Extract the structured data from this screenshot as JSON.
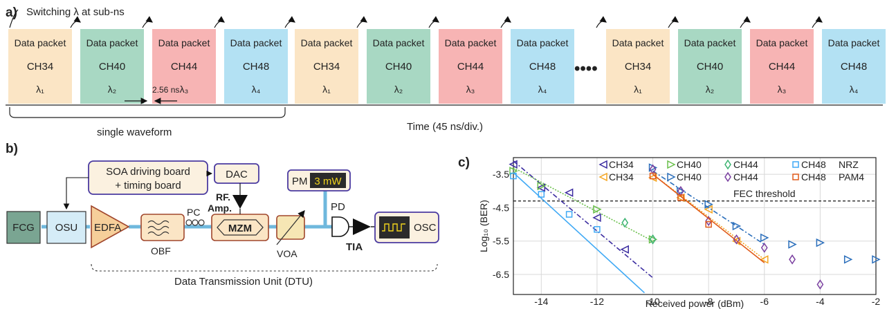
{
  "panel_a": {
    "label": "a)",
    "switching_note": "Switching λ  at sub-ns",
    "dots": "••••",
    "gap_label": "2.56 ns",
    "single_waveform": "single waveform",
    "time_label": "Time (45 ns/div.)",
    "packet_title": "Data packet",
    "packets": [
      {
        "ch": "CH34",
        "lam": "λ₁",
        "color": "#fbe5c5"
      },
      {
        "ch": "CH40",
        "lam": "λ₂",
        "color": "#a8d8c3"
      },
      {
        "ch": "CH44",
        "lam": "λ₃",
        "color": "#f7b4b4"
      },
      {
        "ch": "CH48",
        "lam": "λ₄",
        "color": "#b3e1f3"
      },
      {
        "ch": "CH34",
        "lam": "λ₁",
        "color": "#fbe5c5"
      },
      {
        "ch": "CH40",
        "lam": "λ₂",
        "color": "#a8d8c3"
      },
      {
        "ch": "CH44",
        "lam": "λ₃",
        "color": "#f7b4b4"
      },
      {
        "ch": "CH48",
        "lam": "λ₄",
        "color": "#b3e1f3"
      },
      {
        "ch": "CH34",
        "lam": "λ₁",
        "color": "#fbe5c5"
      },
      {
        "ch": "CH40",
        "lam": "λ₂",
        "color": "#a8d8c3"
      },
      {
        "ch": "CH44",
        "lam": "λ₃",
        "color": "#f7b4b4"
      },
      {
        "ch": "CH48",
        "lam": "λ₄",
        "color": "#b3e1f3"
      }
    ]
  },
  "panel_b": {
    "label": "b)",
    "soa_board_line1": "SOA driving board",
    "soa_board_line2": "+ timing board",
    "dac": "DAC",
    "pm": "PM",
    "pm_value": "3 mW",
    "rf_line1": "RF.",
    "rf_line2": "Amp.",
    "pd": "PD",
    "fcg": "FCG",
    "osu": "OSU",
    "edfa": "EDFA",
    "obf": "OBF",
    "pc": "PC",
    "mzm": "MZM",
    "voa": "VOA",
    "tia": "TIA",
    "osc": "OSC",
    "dtu": "Data Transmission Unit (DTU)"
  },
  "panel_c": {
    "label": "c)",
    "fec_label": "FEC threshold",
    "nrz_label": "NRZ",
    "pam4_label": "PAM4"
  },
  "chart_data": {
    "type": "scatter",
    "xlabel": "Received power (dBm)",
    "ylabel": "Log₁₀ (BER)",
    "xlim": [
      -15,
      -2
    ],
    "ylim": [
      -7.1,
      -3.0
    ],
    "xticks": [
      "-14",
      "-12",
      "-10",
      "-8",
      "-6",
      "-4",
      "-2"
    ],
    "yticks": [
      "-3.5",
      "-4.5",
      "-5.5",
      "-6.5"
    ],
    "fec_threshold": -4.3,
    "grid": true,
    "series": [
      {
        "name": "CH34",
        "format": "NRZ",
        "color": "#3b2ca0",
        "marker": "tri-left",
        "line": "dashdot",
        "x": [
          -15,
          -14,
          -13,
          -12,
          -11
        ],
        "y": [
          -3.2,
          -3.9,
          -4.05,
          -4.8,
          -5.75
        ],
        "fit": [
          [
            -15,
            -3.1
          ],
          [
            -10,
            -6.6
          ]
        ]
      },
      {
        "name": "CH40",
        "format": "NRZ",
        "color": "#6abf4b",
        "marker": "tri-right",
        "line": "dotted",
        "x": [
          -15,
          -14,
          -12,
          -10
        ],
        "y": [
          -3.4,
          -3.85,
          -4.55,
          -5.45
        ],
        "fit": [
          [
            -15,
            -3.3
          ],
          [
            -10,
            -5.5
          ]
        ]
      },
      {
        "name": "CH44",
        "format": "NRZ",
        "color": "#3cb371",
        "marker": "diamond",
        "line": "dashed",
        "x": [
          -11,
          -10
        ],
        "y": [
          -4.95,
          -5.45
        ],
        "fit": null
      },
      {
        "name": "CH48",
        "format": "NRZ",
        "color": "#3fa9f5",
        "marker": "square",
        "line": "solid",
        "x": [
          -15,
          -14,
          -13,
          -12
        ],
        "y": [
          -3.55,
          -4.1,
          -4.7,
          -5.15
        ],
        "fit": [
          [
            -15,
            -3.45
          ],
          [
            -10.3,
            -7.05
          ]
        ]
      },
      {
        "name": "CH34",
        "format": "PAM4",
        "color": "#f5a623",
        "marker": "tri-left",
        "line": "dotted",
        "x": [
          -10,
          -9,
          -8,
          -7,
          -6
        ],
        "y": [
          -3.6,
          -4.2,
          -4.55,
          -5.5,
          -6.05
        ],
        "fit": [
          [
            -10,
            -3.5
          ],
          [
            -6,
            -6.05
          ]
        ]
      },
      {
        "name": "CH40",
        "format": "PAM4",
        "color": "#2a6ebb",
        "marker": "tri-right",
        "line": "dashdot",
        "x": [
          -10,
          -9,
          -8,
          -7,
          -6,
          -5,
          -4,
          -3,
          -2
        ],
        "y": [
          -3.3,
          -4.0,
          -4.4,
          -5.05,
          -5.4,
          -5.6,
          -5.55,
          -6.05,
          -6.05
        ],
        "fit": [
          [
            -10,
            -3.4
          ],
          [
            -6,
            -5.6
          ]
        ]
      },
      {
        "name": "CH44",
        "format": "PAM4",
        "color": "#7a3fa0",
        "marker": "diamond",
        "line": "dotted",
        "x": [
          -10,
          -9,
          -8,
          -7,
          -6,
          -5,
          -4
        ],
        "y": [
          -3.35,
          -4.0,
          -4.9,
          -5.45,
          -5.7,
          -6.05,
          -6.8
        ],
        "fit": null
      },
      {
        "name": "CH48",
        "format": "PAM4",
        "color": "#e05a1a",
        "marker": "square",
        "line": "solid",
        "x": [
          -10,
          -9,
          -8
        ],
        "y": [
          -3.55,
          -4.2,
          -5.0
        ],
        "fit": [
          [
            -10,
            -3.5
          ],
          [
            -6,
            -6.15
          ]
        ]
      }
    ]
  }
}
